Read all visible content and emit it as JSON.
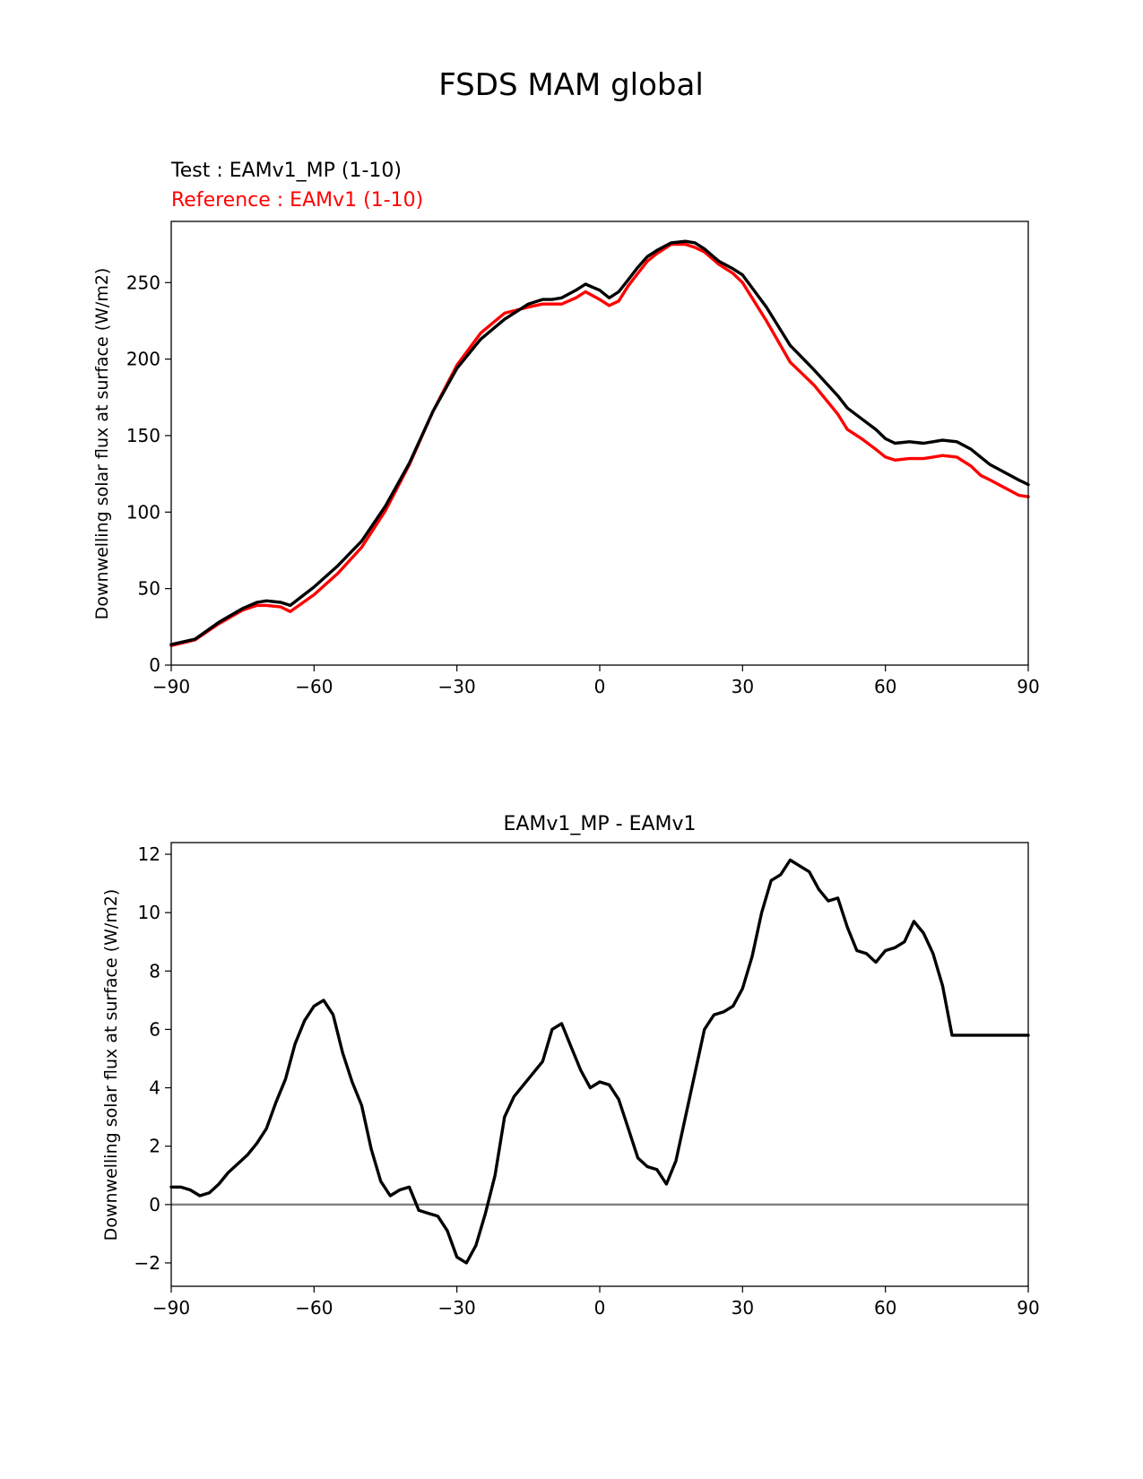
{
  "figure": {
    "suptitle": "FSDS MAM global"
  },
  "chart_data": [
    {
      "type": "line",
      "test_label": "Test : EAMv1_MP (1-10)",
      "reference_label": "Reference : EAMv1 (1-10)",
      "xlabel": "",
      "ylabel": "Downwelling solar flux at surface (W/m2)",
      "xlim": [
        -90,
        90
      ],
      "ylim": [
        0,
        290
      ],
      "xticks": [
        -90,
        -60,
        -30,
        0,
        30,
        60,
        90
      ],
      "xtick_labels": [
        "−90",
        "−60",
        "−30",
        "0",
        "30",
        "60",
        "90"
      ],
      "yticks": [
        0,
        50,
        100,
        150,
        200,
        250
      ],
      "ytick_labels": [
        "0",
        "50",
        "100",
        "150",
        "200",
        "250"
      ],
      "x": [
        -90,
        -85,
        -80,
        -75,
        -72,
        -70,
        -67,
        -65,
        -60,
        -55,
        -50,
        -45,
        -40,
        -35,
        -30,
        -25,
        -20,
        -15,
        -12,
        -10,
        -8,
        -5,
        -3,
        0,
        2,
        4,
        6,
        8,
        10,
        12,
        15,
        18,
        20,
        22,
        25,
        28,
        30,
        35,
        40,
        45,
        50,
        52,
        55,
        58,
        60,
        62,
        65,
        68,
        70,
        72,
        75,
        78,
        80,
        82,
        85,
        88,
        90
      ],
      "series": [
        {
          "name": "Test : EAMv1_MP (1-10)",
          "color": "#000000",
          "values": [
            13.5,
            17,
            28,
            37,
            41,
            42,
            41,
            39,
            51,
            65,
            81,
            104,
            132,
            166,
            194,
            213,
            226,
            236,
            239,
            239,
            240,
            245,
            249,
            245,
            240,
            244,
            252,
            260,
            267,
            271,
            276,
            277,
            276,
            272,
            264,
            259,
            255,
            234,
            209,
            193,
            176,
            168,
            161,
            154,
            148,
            145,
            146,
            145,
            146,
            147,
            146,
            141,
            136,
            131,
            126,
            121,
            118
          ]
        },
        {
          "name": "Reference : EAMv1 (1-10)",
          "color": "#ff0000",
          "values": [
            12.8,
            16.5,
            27,
            36,
            39,
            39,
            38,
            35,
            46,
            60,
            77,
            101,
            131,
            166,
            196,
            217,
            230,
            234,
            236,
            236,
            236,
            240,
            244,
            239,
            235,
            238,
            248,
            256,
            264,
            269,
            275,
            275,
            273,
            270,
            262,
            256,
            250,
            225,
            198,
            183,
            164,
            154,
            148,
            141,
            136,
            134,
            135,
            135,
            136,
            137,
            136,
            130,
            124,
            121,
            116,
            111,
            110
          ]
        }
      ]
    },
    {
      "type": "line",
      "title": "EAMv1_MP - EAMv1",
      "xlabel": "",
      "ylabel": "Downwelling solar flux at surface (W/m2)",
      "xlim": [
        -90,
        90
      ],
      "ylim": [
        -2.8,
        12.4
      ],
      "xticks": [
        -90,
        -60,
        -30,
        0,
        30,
        60,
        90
      ],
      "xtick_labels": [
        "−90",
        "−60",
        "−30",
        "0",
        "30",
        "60",
        "90"
      ],
      "yticks": [
        -2,
        0,
        2,
        4,
        6,
        8,
        10,
        12
      ],
      "ytick_labels": [
        "−2",
        "0",
        "2",
        "4",
        "6",
        "8",
        "10",
        "12"
      ],
      "zero_line_color": "#808080",
      "x": [
        -90,
        -88,
        -86,
        -84,
        -82,
        -80,
        -78,
        -76,
        -74,
        -72,
        -70,
        -68,
        -66,
        -64,
        -62,
        -60,
        -58,
        -56,
        -54,
        -52,
        -50,
        -48,
        -46,
        -44,
        -42,
        -40,
        -38,
        -36,
        -34,
        -32,
        -30,
        -28,
        -26,
        -24,
        -22,
        -20,
        -18,
        -16,
        -14,
        -12,
        -10,
        -8,
        -6,
        -4,
        -2,
        0,
        2,
        4,
        6,
        8,
        10,
        12,
        14,
        16,
        18,
        20,
        22,
        24,
        26,
        28,
        30,
        32,
        34,
        36,
        38,
        40,
        42,
        44,
        46,
        48,
        50,
        52,
        54,
        56,
        58,
        60,
        62,
        64,
        66,
        68,
        70,
        72,
        74,
        76,
        78,
        80,
        82,
        84,
        86,
        88,
        90
      ],
      "series": [
        {
          "name": "EAMv1_MP - EAMv1",
          "color": "#000000",
          "values": [
            0.6,
            0.6,
            0.5,
            0.3,
            0.4,
            0.7,
            1.1,
            1.4,
            1.7,
            2.1,
            2.6,
            3.5,
            4.3,
            5.5,
            6.3,
            6.8,
            7.0,
            6.5,
            5.2,
            4.2,
            3.4,
            1.9,
            0.8,
            0.3,
            0.5,
            0.6,
            -0.2,
            -0.3,
            -0.4,
            -0.9,
            -1.8,
            -2.0,
            -1.4,
            -0.3,
            1.0,
            3.0,
            3.7,
            4.1,
            4.5,
            4.9,
            6.0,
            6.2,
            5.4,
            4.6,
            4.0,
            4.2,
            4.1,
            3.6,
            2.6,
            1.6,
            1.3,
            1.2,
            0.7,
            1.5,
            3.0,
            4.5,
            6.0,
            6.5,
            6.6,
            6.8,
            7.4,
            8.5,
            10.0,
            11.1,
            11.3,
            11.8,
            11.6,
            11.4,
            10.8,
            10.4,
            10.5,
            9.5,
            8.7,
            8.6,
            8.3,
            8.7,
            8.8,
            9.0,
            9.7,
            9.3,
            8.6,
            7.5,
            5.8,
            5.8,
            5.8,
            5.8,
            5.8,
            5.8,
            5.8,
            5.8,
            5.8
          ]
        }
      ]
    }
  ]
}
